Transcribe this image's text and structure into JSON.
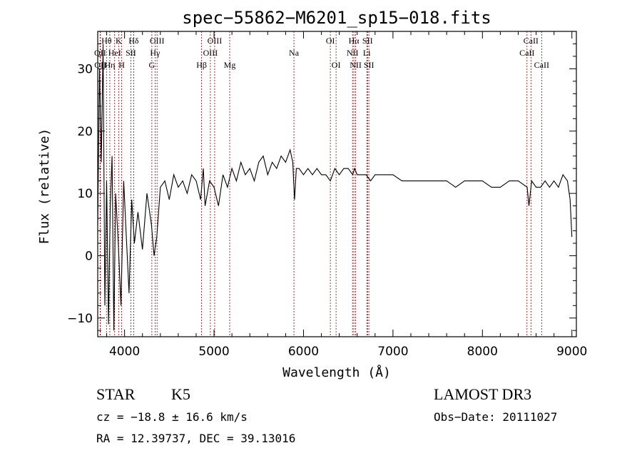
{
  "chart_data": {
    "type": "line",
    "title": "spec−55862−M6201_sp15−018.fits",
    "xlabel": "Wavelength (Å)",
    "ylabel": "Flux (relative)",
    "xlim": [
      3700,
      9050
    ],
    "ylim": [
      -13,
      36
    ],
    "xticks": [
      4000,
      5000,
      6000,
      7000,
      8000,
      9000
    ],
    "xtick_labels": [
      "4000",
      "5000",
      "6000",
      "7000",
      "8000",
      "9000"
    ],
    "yticks": [
      -10,
      0,
      10,
      20,
      30
    ],
    "ytick_labels": [
      "−10",
      "0",
      "10",
      "20",
      "30"
    ],
    "series": [
      {
        "name": "spectrum",
        "x": [
          3700,
          3720,
          3740,
          3760,
          3780,
          3800,
          3820,
          3840,
          3860,
          3880,
          3900,
          3930,
          3960,
          3990,
          4020,
          4050,
          4080,
          4110,
          4150,
          4200,
          4250,
          4300,
          4330,
          4360,
          4400,
          4450,
          4500,
          4550,
          4600,
          4650,
          4700,
          4750,
          4800,
          4850,
          4880,
          4900,
          4950,
          5000,
          5050,
          5100,
          5150,
          5200,
          5250,
          5300,
          5350,
          5400,
          5450,
          5500,
          5550,
          5600,
          5650,
          5700,
          5750,
          5800,
          5850,
          5880,
          5900,
          5920,
          5950,
          6000,
          6050,
          6100,
          6150,
          6200,
          6250,
          6300,
          6350,
          6400,
          6450,
          6500,
          6550,
          6570,
          6600,
          6650,
          6700,
          6750,
          6800,
          6900,
          7000,
          7100,
          7200,
          7300,
          7400,
          7500,
          7600,
          7700,
          7800,
          7900,
          8000,
          8100,
          8200,
          8300,
          8400,
          8500,
          8520,
          8550,
          8600,
          8650,
          8700,
          8750,
          8800,
          8850,
          8900,
          8950,
          8980,
          9000
        ],
        "values": [
          5,
          30,
          15,
          34,
          -8,
          12,
          -11,
          8,
          16,
          -12,
          10,
          2,
          -8,
          12,
          3,
          -6,
          9,
          2,
          7,
          1,
          10,
          5,
          0,
          3,
          11,
          12,
          9,
          13,
          11,
          12,
          10,
          13,
          12,
          9,
          14,
          8,
          12,
          11,
          8,
          13,
          11,
          14,
          12,
          15,
          13,
          14,
          12,
          15,
          16,
          13,
          15,
          14,
          16,
          15,
          17,
          15,
          9,
          14,
          14,
          13,
          14,
          13,
          14,
          13,
          13,
          12,
          14,
          13,
          14,
          14,
          13,
          14,
          13,
          13,
          13,
          12,
          13,
          13,
          13,
          12,
          12,
          12,
          12,
          12,
          12,
          11,
          12,
          12,
          12,
          11,
          11,
          12,
          12,
          11,
          8,
          12,
          11,
          11,
          12,
          11,
          12,
          11,
          13,
          12,
          9,
          3
        ]
      }
    ],
    "lines_row1": [
      {
        "label": "Hθ",
        "x": 3798
      },
      {
        "label": "K",
        "x": 3934
      },
      {
        "label": "Hδ",
        "x": 4102
      },
      {
        "label": "OIII",
        "x": 4363
      },
      {
        "label": "OIII",
        "x": 5007
      },
      {
        "label": "OI",
        "x": 6300
      },
      {
        "label": "Hα",
        "x": 6563
      },
      {
        "label": "SII",
        "x": 6716
      },
      {
        "label": "CaII",
        "x": 8542
      }
    ],
    "lines_row2": [
      {
        "label": "OII",
        "x": 3727
      },
      {
        "label": "HeI",
        "x": 3889
      },
      {
        "label": "SII",
        "x": 4070
      },
      {
        "label": "Hγ",
        "x": 4341
      },
      {
        "label": "OIII",
        "x": 4959
      },
      {
        "label": "Na",
        "x": 5893
      },
      {
        "label": "NII",
        "x": 6548
      },
      {
        "label": "Li",
        "x": 6708
      },
      {
        "label": "CaII",
        "x": 8498
      }
    ],
    "lines_row3": [
      {
        "label": "OII",
        "x": 3729
      },
      {
        "label": "Hη",
        "x": 3835
      },
      {
        "label": "H",
        "x": 3968
      },
      {
        "label": "G",
        "x": 4305
      },
      {
        "label": "Hβ",
        "x": 4861
      },
      {
        "label": "Mg",
        "x": 5175
      },
      {
        "label": "OI",
        "x": 6364
      },
      {
        "label": "NII",
        "x": 6583
      },
      {
        "label": "SII",
        "x": 6731
      },
      {
        "label": "CaII",
        "x": 8662
      }
    ],
    "line_color": "#8b0000"
  },
  "info": {
    "class_label": "STAR",
    "subclass_label": "K5",
    "survey_label": "LAMOST DR3",
    "cz_text": "cz = −18.8 ± 16.6 km/s",
    "obs_date_text": "Obs−Date: 20111027",
    "ra_dec_text": "RA =  12.39737, DEC =  39.13016"
  }
}
